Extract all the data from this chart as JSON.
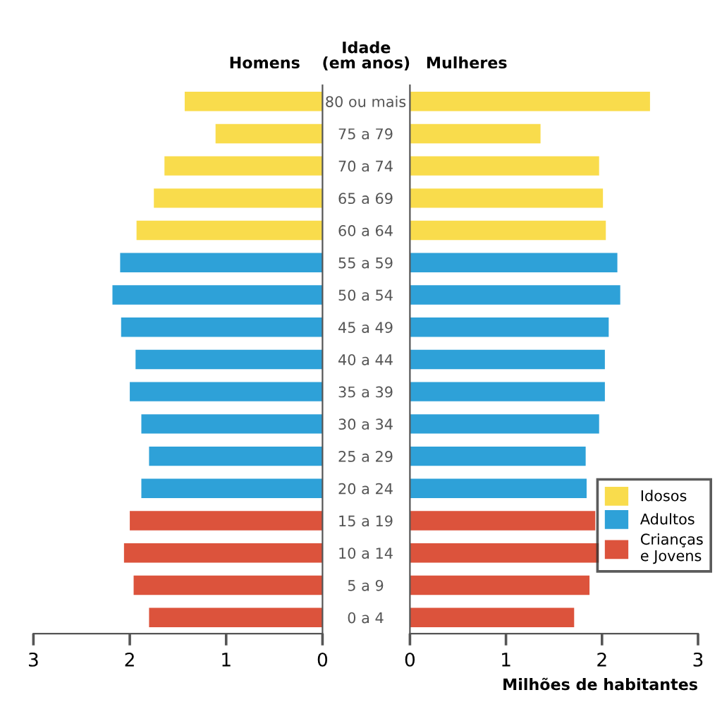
{
  "chart_data": [
    {
      "type": "bar",
      "orientation": "horizontal",
      "title": "Homens",
      "ylabel": "Idade\n(em anos)",
      "categories": [
        "80 ou mais",
        "75 a 79",
        "70 a 74",
        "65 a 69",
        "60 a 64",
        "55 a 59",
        "50 a 54",
        "45 a 49",
        "40 a 44",
        "35 a 39",
        "30 a 34",
        "25 a 29",
        "20 a 24",
        "15 a 19",
        "10 a 14",
        "5 a 9",
        "0 a 4"
      ],
      "series": [
        {
          "color": "#f9dc4c",
          "values": [
            1.43,
            1.11,
            1.64,
            1.75,
            1.93,
            null,
            null,
            null,
            null,
            null,
            null,
            null,
            null,
            null,
            null,
            null,
            null
          ]
        },
        {
          "color": "#2ea1d8",
          "values": [
            null,
            null,
            null,
            null,
            null,
            2.1,
            2.18,
            2.09,
            1.94,
            2.0,
            1.88,
            1.8,
            1.88,
            null,
            null,
            null,
            null
          ]
        },
        {
          "color": "#dc533c",
          "values": [
            null,
            null,
            null,
            null,
            null,
            null,
            null,
            null,
            null,
            null,
            null,
            null,
            null,
            2.0,
            2.06,
            1.96,
            1.8
          ]
        }
      ],
      "xlim": [
        3,
        0
      ],
      "xticks": [
        3,
        2,
        1,
        0
      ]
    },
    {
      "type": "bar",
      "orientation": "horizontal",
      "title": "Mulheres",
      "xlabel": "Milhões de habitantes",
      "tick_labels": "x",
      "legend": "bottom right",
      "series": [
        {
          "name": "Idosos",
          "color": "#f9dc4c",
          "values": [
            2.5,
            1.36,
            1.97,
            2.01,
            2.04,
            null,
            null,
            null,
            null,
            null,
            null,
            null,
            null,
            null,
            null,
            null,
            null
          ]
        },
        {
          "name": "Adultos",
          "color": "#2ea1d8",
          "values": [
            null,
            null,
            null,
            null,
            null,
            2.16,
            2.19,
            2.07,
            2.03,
            2.03,
            1.97,
            1.83,
            1.84,
            null,
            null,
            null,
            null
          ]
        },
        {
          "name": "Crianças\ne Jovens",
          "color": "#dc533c",
          "values": [
            null,
            null,
            null,
            null,
            null,
            null,
            null,
            null,
            null,
            null,
            null,
            null,
            null,
            1.93,
            1.97,
            1.87,
            1.71
          ]
        }
      ],
      "xlim": [
        0,
        3
      ],
      "xticks": [
        0,
        1,
        2,
        3
      ]
    }
  ]
}
